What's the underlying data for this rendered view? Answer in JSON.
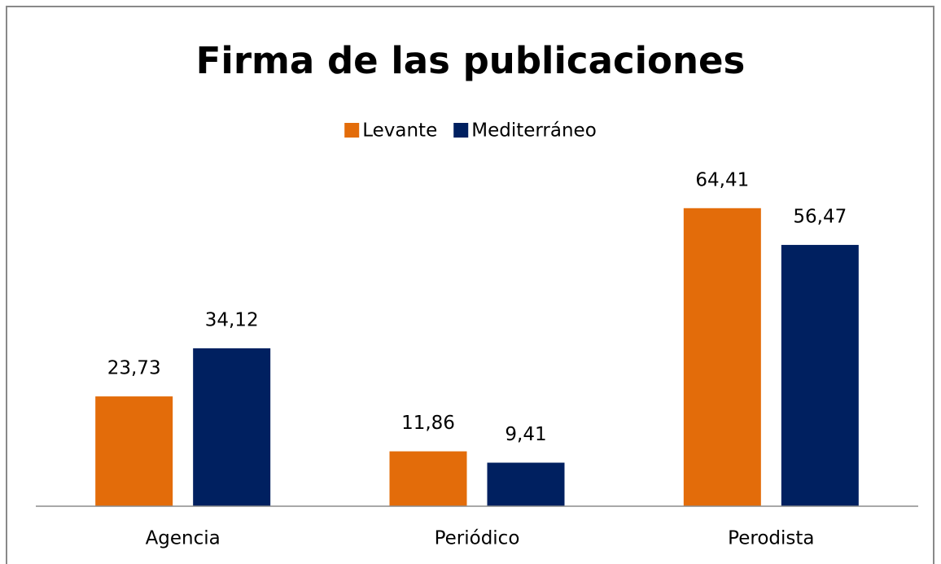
{
  "chart_data": {
    "type": "bar",
    "title": "Firma de las publicaciones",
    "categories": [
      "Agencia",
      "Periódico",
      "Perodista"
    ],
    "series": [
      {
        "name": "Levante",
        "color": "#e36c0a",
        "values": [
          23.73,
          11.86,
          64.41
        ],
        "value_labels": [
          "23,73",
          "11,86",
          "64,41"
        ]
      },
      {
        "name": "Mediterráneo",
        "color": "#002060",
        "values": [
          34.12,
          9.41,
          56.47
        ],
        "value_labels": [
          "34,12",
          "9,41",
          "56,47"
        ]
      }
    ],
    "ylim": [
      0,
      70
    ],
    "legend": "top"
  }
}
